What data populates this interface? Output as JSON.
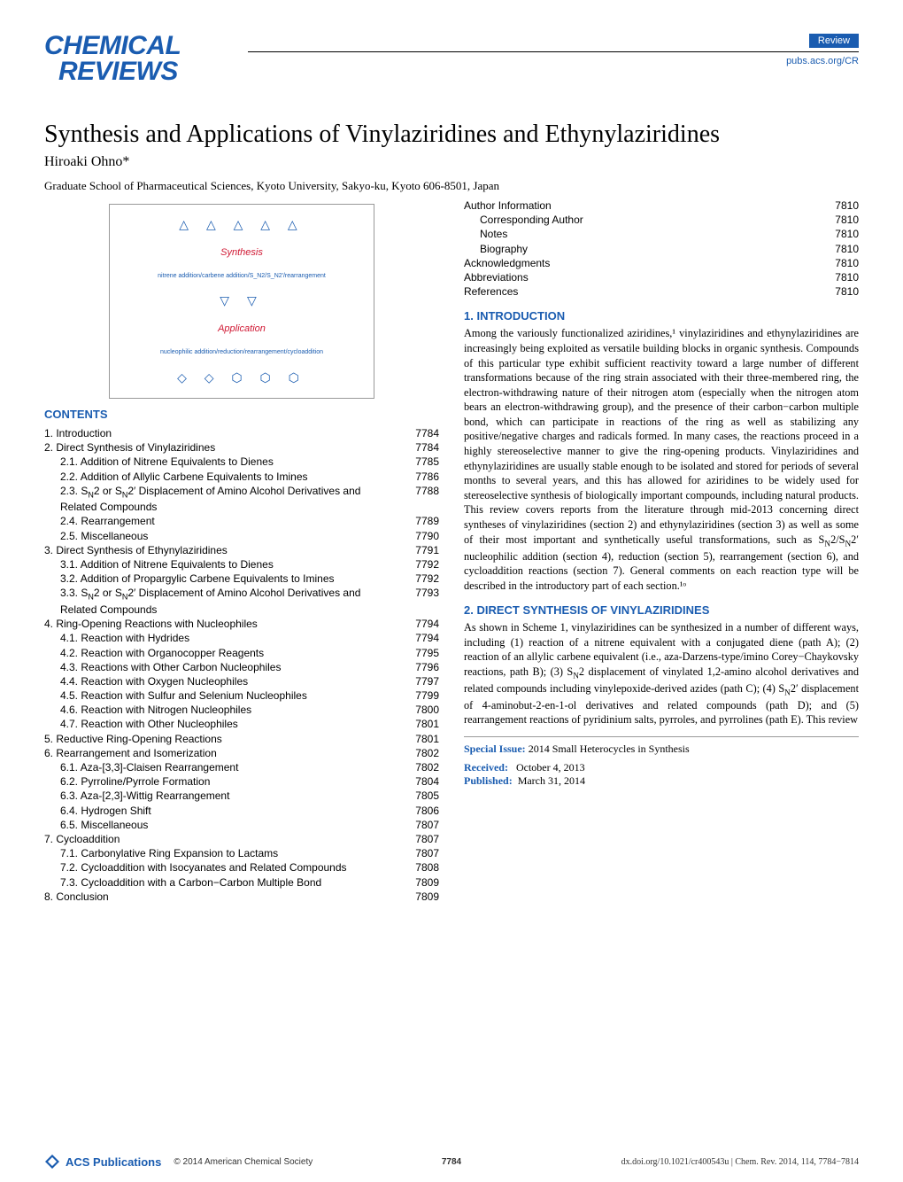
{
  "journal": {
    "line1": "CHEMICAL",
    "line2": "REVIEWS"
  },
  "header": {
    "badge": "Review",
    "link": "pubs.acs.org/CR"
  },
  "title": "Synthesis and Applications of Vinylaziridines and Ethynylaziridines",
  "author": "Hiroaki Ohno*",
  "affiliation": "Graduate School of Pharmaceutical Sciences, Kyoto University, Sakyo-ku, Kyoto 606-8501, Japan",
  "graphic": {
    "synthesis": "Synthesis",
    "synth_sub": "nitrene addition/carbene addition/S_N2/S_N2'/rearrangement",
    "application": "Application",
    "app_sub": "nucleophilic addition/reduction/rearrangement/cycloaddition"
  },
  "contents_header": "CONTENTS",
  "toc_left": [
    {
      "label": "1. Introduction",
      "page": "7784",
      "indent": 0
    },
    {
      "label": "2. Direct Synthesis of Vinylaziridines",
      "page": "7784",
      "indent": 0
    },
    {
      "label": "2.1. Addition of Nitrene Equivalents to Dienes",
      "page": "7785",
      "indent": 1
    },
    {
      "label": "2.2. Addition of Allylic Carbene Equivalents to Imines",
      "page": "7786",
      "indent": 1,
      "wrap": true
    },
    {
      "label": "2.3. S_N2 or S_N2' Displacement of Amino Alcohol Derivatives and Related Compounds",
      "page": "7788",
      "indent": 1,
      "wrap": true
    },
    {
      "label": "2.4. Rearrangement",
      "page": "7789",
      "indent": 1
    },
    {
      "label": "2.5. Miscellaneous",
      "page": "7790",
      "indent": 1
    },
    {
      "label": "3. Direct Synthesis of Ethynylaziridines",
      "page": "7791",
      "indent": 0
    },
    {
      "label": "3.1. Addition of Nitrene Equivalents to Dienes",
      "page": "7792",
      "indent": 1
    },
    {
      "label": "3.2. Addition of Propargylic Carbene Equivalents to Imines",
      "page": "7792",
      "indent": 1,
      "wrap": true
    },
    {
      "label": "3.3. S_N2 or S_N2' Displacement of Amino Alcohol Derivatives and Related Compounds",
      "page": "7793",
      "indent": 1,
      "wrap": true
    },
    {
      "label": "4. Ring-Opening Reactions with Nucleophiles",
      "page": "7794",
      "indent": 0
    },
    {
      "label": "4.1. Reaction with Hydrides",
      "page": "7794",
      "indent": 1
    },
    {
      "label": "4.2. Reaction with Organocopper Reagents",
      "page": "7795",
      "indent": 1
    },
    {
      "label": "4.3. Reactions with Other Carbon Nucleophiles",
      "page": "7796",
      "indent": 1
    },
    {
      "label": "4.4. Reaction with Oxygen Nucleophiles",
      "page": "7797",
      "indent": 1
    },
    {
      "label": "4.5. Reaction with Sulfur and Selenium Nucleophiles",
      "page": "7799",
      "indent": 1,
      "wrap": true
    },
    {
      "label": "4.6. Reaction with Nitrogen Nucleophiles",
      "page": "7800",
      "indent": 1
    },
    {
      "label": "4.7. Reaction with Other Nucleophiles",
      "page": "7801",
      "indent": 1
    },
    {
      "label": "5. Reductive Ring-Opening Reactions",
      "page": "7801",
      "indent": 0
    },
    {
      "label": "6. Rearrangement and Isomerization",
      "page": "7802",
      "indent": 0
    },
    {
      "label": "6.1. Aza-[3,3]-Claisen Rearrangement",
      "page": "7802",
      "indent": 1
    },
    {
      "label": "6.2. Pyrroline/Pyrrole Formation",
      "page": "7804",
      "indent": 1
    },
    {
      "label": "6.3. Aza-[2,3]-Wittig Rearrangement",
      "page": "7805",
      "indent": 1
    },
    {
      "label": "6.4. Hydrogen Shift",
      "page": "7806",
      "indent": 1
    },
    {
      "label": "6.5. Miscellaneous",
      "page": "7807",
      "indent": 1
    },
    {
      "label": "7. Cycloaddition",
      "page": "7807",
      "indent": 0
    },
    {
      "label": "7.1. Carbonylative Ring Expansion to Lactams",
      "page": "7807",
      "indent": 1
    },
    {
      "label": "7.2. Cycloaddition with Isocyanates and Related Compounds",
      "page": "7808",
      "indent": 1,
      "wrap": true
    },
    {
      "label": "7.3. Cycloaddition with a Carbon−Carbon Multiple Bond",
      "page": "7809",
      "indent": 1,
      "wrap": true
    },
    {
      "label": "8. Conclusion",
      "page": "7809",
      "indent": 0
    }
  ],
  "toc_right": [
    {
      "label": "Author Information",
      "page": "7810",
      "indent": 0
    },
    {
      "label": "Corresponding Author",
      "page": "7810",
      "indent": 1
    },
    {
      "label": "Notes",
      "page": "7810",
      "indent": 1
    },
    {
      "label": "Biography",
      "page": "7810",
      "indent": 1
    },
    {
      "label": "Acknowledgments",
      "page": "7810",
      "indent": 0
    },
    {
      "label": "Abbreviations",
      "page": "7810",
      "indent": 0
    },
    {
      "label": "References",
      "page": "7810",
      "indent": 0
    }
  ],
  "section1": {
    "header": "1. INTRODUCTION",
    "body": "Among the variously functionalized aziridines,¹ vinylaziridines and ethynylaziridines are increasingly being exploited as versatile building blocks in organic synthesis. Compounds of this particular type exhibit sufficient reactivity toward a large number of different transformations because of the ring strain associated with their three-membered ring, the electron-withdrawing nature of their nitrogen atom (especially when the nitrogen atom bears an electron-withdrawing group), and the presence of their carbon−carbon multiple bond, which can participate in reactions of the ring as well as stabilizing any positive/negative charges and radicals formed. In many cases, the reactions proceed in a highly stereoselective manner to give the ring-opening products. Vinylaziridines and ethynylaziridines are usually stable enough to be isolated and stored for periods of several months to several years, and this has allowed for aziridines to be widely used for stereoselective synthesis of biologically important compounds, including natural products. This review covers reports from the literature through mid-2013 concerning direct syntheses of vinylaziridines (section 2) and ethynylaziridines (section 3) as well as some of their most important and synthetically useful transformations, such as S_N2/S_N2' nucleophilic addition (section 4), reduction (section 5), rearrangement (section 6), and cycloaddition reactions (section 7). General comments on each reaction type will be described in the introductory part of each section.¹ᵒ"
  },
  "section2": {
    "header": "2. DIRECT SYNTHESIS OF VINYLAZIRIDINES",
    "body": "As shown in Scheme 1, vinylaziridines can be synthesized in a number of different ways, including (1) reaction of a nitrene equivalent with a conjugated diene (path A); (2) reaction of an allylic carbene equivalent (i.e., aza-Darzens-type/imino Corey−Chaykovsky reactions, path B); (3) S_N2 displacement of vinylated 1,2-amino alcohol derivatives and related compounds including vinylepoxide-derived azides (path C); (4) S_N2' displacement of 4-aminobut-2-en-1-ol derivatives and related compounds (path D); and (5) rearrangement reactions of pyridinium salts, pyrroles, and pyrrolines (path E). This review"
  },
  "infobox": {
    "si_label": "Special Issue:",
    "si_value": "2014 Small Heterocycles in Synthesis",
    "rc_label": "Received:",
    "rc_value": "October 4, 2013",
    "pb_label": "Published:",
    "pb_value": "March 31, 2014"
  },
  "footer": {
    "acs": "ACS Publications",
    "copyright": "© 2014 American Chemical Society",
    "page": "7784",
    "doi": "dx.doi.org/10.1021/cr400543u | Chem. Rev. 2014, 114, 7784−7814"
  }
}
